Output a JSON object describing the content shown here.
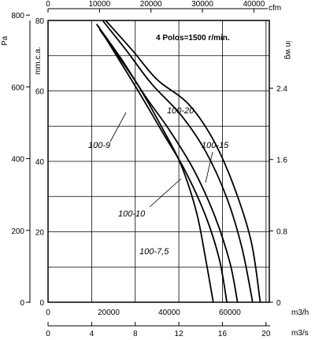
{
  "chart_data": {
    "type": "line",
    "note": "4 Polos=1500 r/min.",
    "axes": {
      "x_bottom_m3h": {
        "unit": "m3/h",
        "ticks": [
          "0",
          "20000",
          "40000",
          "60000"
        ],
        "range": [
          0,
          73000
        ]
      },
      "x_bottom_m3s": {
        "unit": "m3/s",
        "ticks": [
          "0",
          "4",
          "8",
          "12",
          "16",
          "20"
        ],
        "range": [
          0,
          20.3
        ]
      },
      "x_top_cfm": {
        "unit": "cfm",
        "ticks": [
          "0",
          "10000",
          "20000",
          "30000",
          "40000"
        ],
        "range": [
          0,
          43000
        ]
      },
      "y_left_pa": {
        "unit": "Pa",
        "ticks": [
          "0",
          "200",
          "400",
          "600",
          "800"
        ],
        "range": [
          0,
          785
        ]
      },
      "y_left_mmca": {
        "unit": "mm.c.a.",
        "ticks": [
          "0",
          "20",
          "40",
          "60",
          "80"
        ],
        "range": [
          0,
          80
        ]
      },
      "y_right_inwg": {
        "unit": "in wg",
        "ticks": [
          "0",
          "0.8",
          "1.6",
          "2.4"
        ],
        "range": [
          0,
          3.16
        ]
      }
    },
    "grid": true,
    "series": [
      {
        "name": "100-7,5",
        "points": [
          [
            17000,
            760
          ],
          [
            22000,
            700
          ],
          [
            30000,
            600
          ],
          [
            38000,
            480
          ],
          [
            44000,
            380
          ],
          [
            49000,
            250
          ],
          [
            52000,
            120
          ],
          [
            54500,
            0
          ]
        ]
      },
      {
        "name": "100-9",
        "points": [
          [
            16500,
            770
          ],
          [
            22000,
            695
          ],
          [
            30000,
            585
          ],
          [
            38000,
            470
          ],
          [
            45000,
            370
          ],
          [
            52000,
            240
          ],
          [
            56500,
            120
          ],
          [
            59000,
            0
          ]
        ]
      },
      {
        "name": "100-10",
        "points": [
          [
            16000,
            775
          ],
          [
            24000,
            680
          ],
          [
            32000,
            575
          ],
          [
            40000,
            480
          ],
          [
            48000,
            370
          ],
          [
            55000,
            240
          ],
          [
            60000,
            110
          ],
          [
            62500,
            0
          ]
        ]
      },
      {
        "name": "100-15",
        "points": [
          [
            18000,
            785
          ],
          [
            26000,
            700
          ],
          [
            34000,
            610
          ],
          [
            44000,
            520
          ],
          [
            52000,
            420
          ],
          [
            59000,
            290
          ],
          [
            64000,
            150
          ],
          [
            67500,
            0
          ]
        ]
      },
      {
        "name": "100-20",
        "points": [
          [
            19000,
            785
          ],
          [
            28000,
            700
          ],
          [
            36000,
            620
          ],
          [
            46000,
            555
          ],
          [
            54000,
            460
          ],
          [
            61000,
            330
          ],
          [
            67000,
            170
          ],
          [
            70000,
            0
          ]
        ]
      }
    ]
  }
}
